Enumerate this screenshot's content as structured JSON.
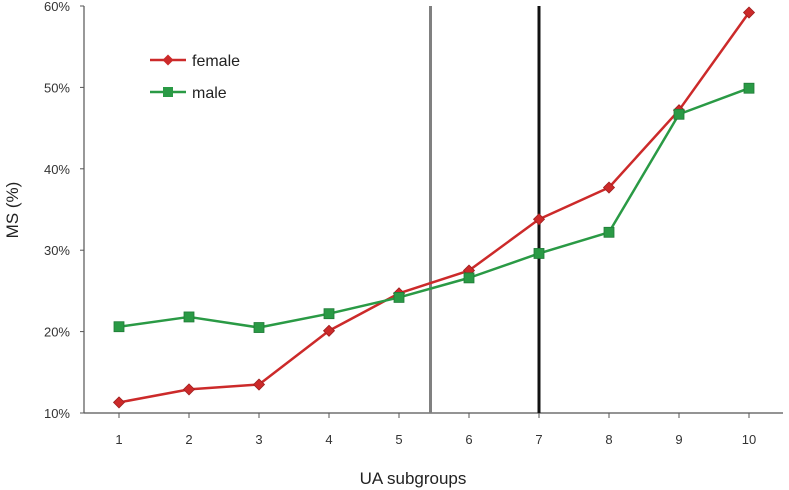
{
  "chart_data": {
    "type": "line",
    "title": "",
    "xlabel": "UA subgroups",
    "ylabel": "MS (%)",
    "categories": [
      "1",
      "2",
      "3",
      "4",
      "5",
      "6",
      "7",
      "8",
      "9",
      "10"
    ],
    "ylim": [
      10,
      60
    ],
    "yticks": [
      "10%",
      "20%",
      "30%",
      "40%",
      "50%",
      "60%"
    ],
    "ytick_values": [
      10,
      20,
      30,
      40,
      50,
      60
    ],
    "grid": false,
    "legend_position": "top-left",
    "series": [
      {
        "name": "female",
        "color": "#cc2a2a",
        "marker": "diamond",
        "values": [
          11.3,
          12.9,
          13.5,
          20.1,
          24.7,
          27.5,
          33.8,
          37.7,
          47.2,
          59.2
        ]
      },
      {
        "name": "male",
        "color": "#2a9a45",
        "marker": "square",
        "values": [
          20.6,
          21.8,
          20.5,
          22.2,
          24.2,
          26.6,
          29.6,
          32.2,
          46.7,
          49.9
        ]
      }
    ],
    "vertical_lines": [
      {
        "x": 5.45,
        "color": "#808080"
      },
      {
        "x": 7.0,
        "color": "#111111"
      }
    ]
  }
}
